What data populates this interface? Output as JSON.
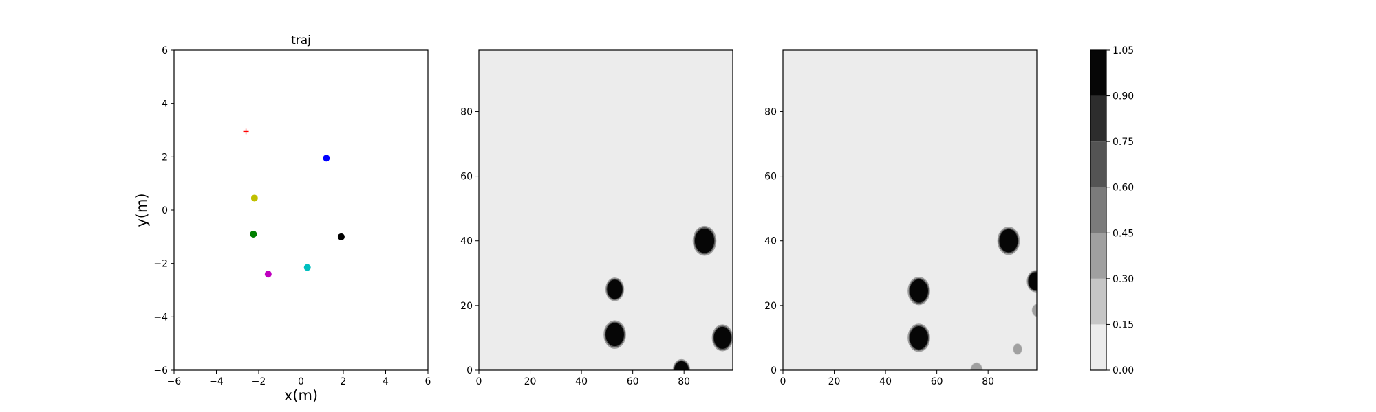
{
  "chart_data": [
    {
      "type": "scatter",
      "title": "traj",
      "xlabel": "x(m)",
      "ylabel": "y(m)",
      "xlim": [
        -6,
        6
      ],
      "ylim": [
        -6,
        6
      ],
      "xticks": [
        -6,
        -4,
        -2,
        0,
        2,
        4,
        6
      ],
      "yticks": [
        -6,
        -4,
        -2,
        0,
        2,
        4,
        6
      ],
      "grid": false,
      "points": [
        {
          "x": 1.2,
          "y": 1.95,
          "color": "#0000ff",
          "marker": "circle"
        },
        {
          "x": -2.2,
          "y": 0.45,
          "color": "#bfbf00",
          "marker": "circle"
        },
        {
          "x": -2.25,
          "y": -0.9,
          "color": "#008000",
          "marker": "circle"
        },
        {
          "x": 1.9,
          "y": -1.0,
          "color": "#000000",
          "marker": "circle"
        },
        {
          "x": 0.3,
          "y": -2.15,
          "color": "#00bfbf",
          "marker": "circle"
        },
        {
          "x": -1.55,
          "y": -2.4,
          "color": "#bf00bf",
          "marker": "circle"
        }
      ],
      "goal": {
        "x": -2.6,
        "y": 2.95,
        "color": "#ff0000",
        "marker": "plus"
      }
    },
    {
      "type": "heatmap",
      "xlim": [
        0,
        99
      ],
      "ylim": [
        0,
        99
      ],
      "xticks": [
        0,
        20,
        40,
        60,
        80
      ],
      "yticks": [
        0,
        20,
        40,
        60,
        80
      ],
      "background_level": 0.05,
      "blobs": [
        {
          "x": 88,
          "y": 40,
          "r": 3.8,
          "value": 1.0
        },
        {
          "x": 53,
          "y": 25,
          "r": 3.0,
          "value": 1.0
        },
        {
          "x": 53,
          "y": 11,
          "r": 3.6,
          "value": 1.0
        },
        {
          "x": 95,
          "y": 10,
          "r": 3.4,
          "value": 1.0
        },
        {
          "x": 79,
          "y": 0,
          "r": 2.8,
          "value": 1.0
        }
      ]
    },
    {
      "type": "heatmap",
      "xlim": [
        0,
        99
      ],
      "ylim": [
        0,
        99
      ],
      "xticks": [
        0,
        20,
        40,
        60,
        80
      ],
      "yticks": [
        0,
        20,
        40,
        60,
        80
      ],
      "background_level": 0.05,
      "blobs": [
        {
          "x": 88,
          "y": 40,
          "r": 3.6,
          "value": 1.0
        },
        {
          "x": 53,
          "y": 24.5,
          "r": 3.6,
          "value": 1.0
        },
        {
          "x": 53,
          "y": 10,
          "r": 3.6,
          "value": 1.0
        },
        {
          "x": 98.5,
          "y": 27.5,
          "r": 2.8,
          "value": 0.95
        },
        {
          "x": 99,
          "y": 18.5,
          "r": 1.8,
          "value": 0.3
        },
        {
          "x": 91.5,
          "y": 6.5,
          "r": 1.6,
          "value": 0.35
        },
        {
          "x": 75.5,
          "y": 0,
          "r": 2.2,
          "value": 0.4
        }
      ]
    }
  ],
  "colorbar": {
    "levels": [
      0.0,
      0.15,
      0.3,
      0.45,
      0.6,
      0.75,
      0.9,
      1.05
    ],
    "tick_labels": [
      "0.00",
      "0.15",
      "0.30",
      "0.45",
      "0.60",
      "0.75",
      "0.90",
      "1.05"
    ],
    "colors": [
      "#ececec",
      "#c6c6c6",
      "#a0a0a0",
      "#7b7b7b",
      "#545454",
      "#2d2d2d",
      "#060606"
    ]
  }
}
